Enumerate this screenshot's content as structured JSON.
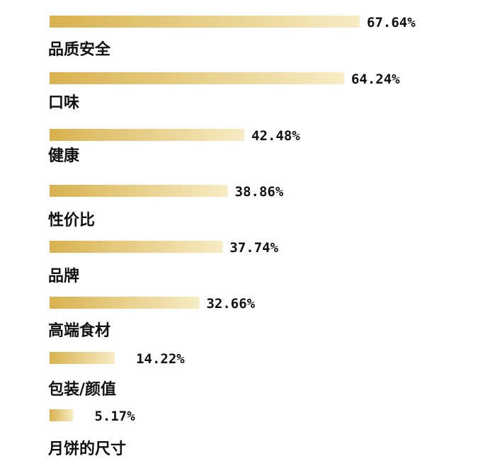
{
  "chart_data": {
    "type": "bar",
    "orientation": "horizontal",
    "categories": [
      "品质安全",
      "口味",
      "健康",
      "性价比",
      "品牌",
      "高端食材",
      "包装/颜值",
      "月饼的尺寸"
    ],
    "values": [
      67.64,
      64.24,
      42.48,
      38.86,
      37.74,
      32.66,
      14.22,
      5.17
    ],
    "value_labels": [
      "67.64%",
      "64.24%",
      "42.48%",
      "38.86%",
      "37.74%",
      "32.66%",
      "14.22%",
      "5.17%"
    ],
    "unit": "%",
    "title": "",
    "xlabel": "",
    "ylabel": "",
    "grid": false,
    "legend": "none",
    "colors": {
      "bar_start": "#d9b24f",
      "bar_end": "#f7ecc4",
      "text": "#111111",
      "background": "#ffffff"
    }
  }
}
